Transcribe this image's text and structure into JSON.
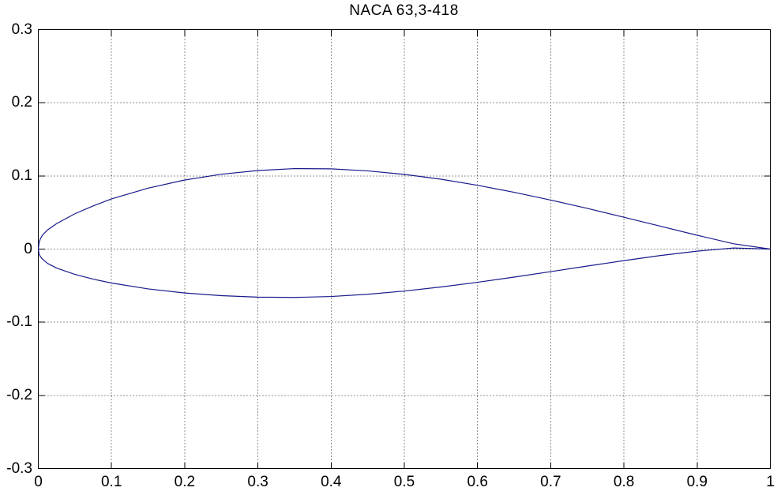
{
  "title": "NACA 63,3-418",
  "chart_data": {
    "type": "line",
    "title": "NACA 63,3-418",
    "xlabel": "",
    "ylabel": "",
    "xlim": [
      0,
      1
    ],
    "ylim": [
      -0.3,
      0.3
    ],
    "x_ticks": [
      0,
      0.1,
      0.2,
      0.3,
      0.4,
      0.5,
      0.6,
      0.7,
      0.8,
      0.9,
      1
    ],
    "x_tick_labels": [
      "0",
      "0.1",
      "0.2",
      "0.3",
      "0.4",
      "0.5",
      "0.6",
      "0.7",
      "0.8",
      "0.9",
      "1"
    ],
    "y_ticks": [
      -0.3,
      -0.2,
      -0.1,
      0,
      0.1,
      0.2,
      0.3
    ],
    "y_tick_labels": [
      "-0.3",
      "-0.2",
      "-0.1",
      "0",
      "0.1",
      "0.2",
      "0.3"
    ],
    "grid": "dotted",
    "legend": "none",
    "colors": {
      "line": "#19198C",
      "axis": "#000000",
      "grid": "#222222",
      "background": "#FFFFFF"
    },
    "series": [
      {
        "name": "upper-surface",
        "x": [
          0.0,
          0.001,
          0.003,
          0.006,
          0.0125,
          0.025,
          0.05,
          0.075,
          0.1,
          0.15,
          0.2,
          0.25,
          0.3,
          0.35,
          0.4,
          0.45,
          0.5,
          0.55,
          0.6,
          0.65,
          0.7,
          0.75,
          0.8,
          0.85,
          0.9,
          0.95,
          1.0
        ],
        "y": [
          0.0,
          0.0085,
          0.0145,
          0.0195,
          0.026,
          0.0348,
          0.0483,
          0.059,
          0.0686,
          0.0833,
          0.0944,
          0.1023,
          0.1074,
          0.11,
          0.1097,
          0.1069,
          0.1021,
          0.0955,
          0.0872,
          0.0776,
          0.067,
          0.0556,
          0.0435,
          0.0312,
          0.0189,
          0.0072,
          0.0
        ]
      },
      {
        "name": "lower-surface",
        "x": [
          0.0,
          0.001,
          0.003,
          0.006,
          0.0125,
          0.025,
          0.05,
          0.075,
          0.1,
          0.15,
          0.2,
          0.25,
          0.3,
          0.35,
          0.4,
          0.45,
          0.5,
          0.55,
          0.6,
          0.65,
          0.7,
          0.75,
          0.8,
          0.85,
          0.9,
          0.95,
          1.0
        ],
        "y": [
          0.0,
          -0.0065,
          -0.0105,
          -0.014,
          -0.0195,
          -0.026,
          -0.0346,
          -0.0411,
          -0.0464,
          -0.0544,
          -0.06,
          -0.0637,
          -0.0657,
          -0.0661,
          -0.0648,
          -0.0618,
          -0.0574,
          -0.0518,
          -0.0454,
          -0.0383,
          -0.0308,
          -0.0232,
          -0.0158,
          -0.0088,
          -0.0028,
          0.0015,
          0.0
        ]
      }
    ]
  }
}
